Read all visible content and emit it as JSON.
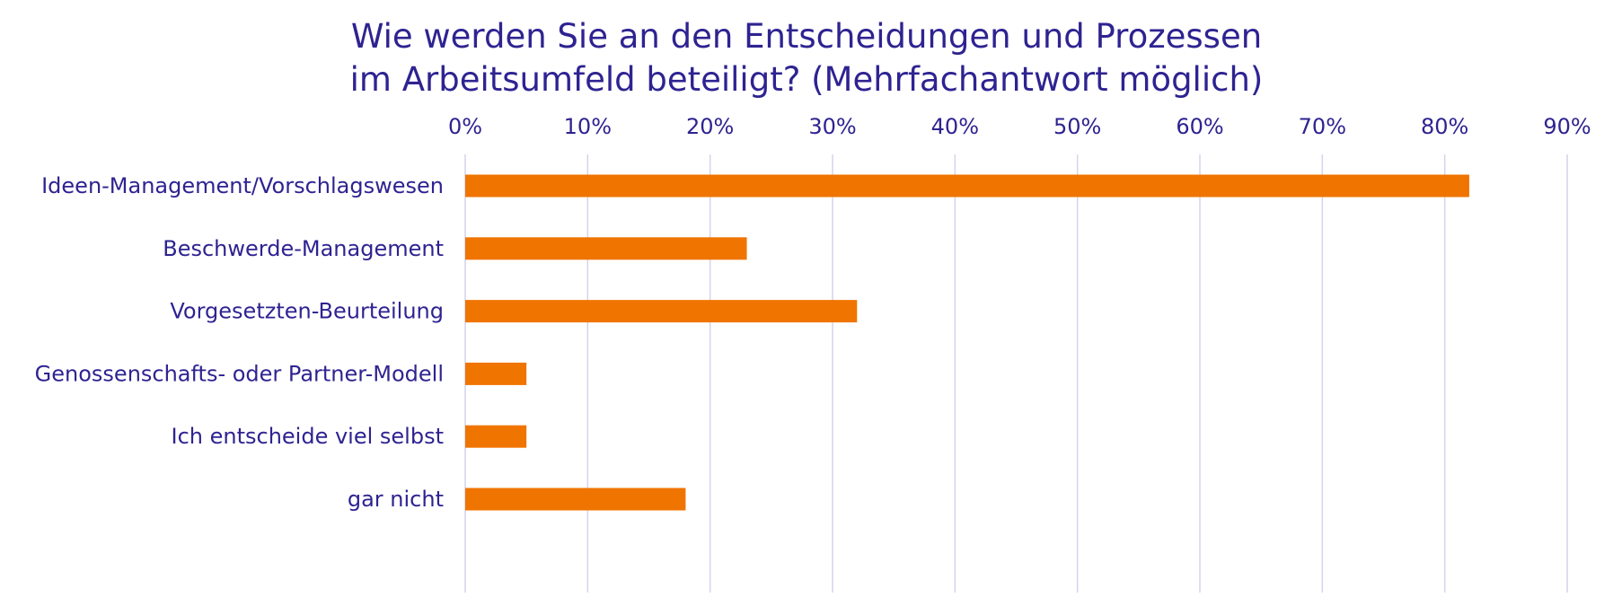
{
  "chart_data": {
    "type": "bar",
    "orientation": "horizontal",
    "title_lines": [
      "Wie werden Sie an den Entscheidungen und Prozessen",
      "im Arbeitsumfeld beteiligt? (Mehrfachantwort möglich)"
    ],
    "categories": [
      "Ideen-Management/Vorschlagswesen",
      "Beschwerde-Management",
      "Vorgesetzten-Beurteilung",
      "Genossenschafts- oder Partner-Modell",
      "Ich entscheide viel selbst",
      "gar nicht"
    ],
    "values": [
      82,
      23,
      32,
      5,
      5,
      18
    ],
    "xlim": [
      0,
      90
    ],
    "x_ticks": [
      0,
      10,
      20,
      30,
      40,
      50,
      60,
      70,
      80,
      90
    ],
    "x_tick_labels": [
      "0%",
      "10%",
      "20%",
      "30%",
      "40%",
      "50%",
      "60%",
      "70%",
      "80%",
      "90%"
    ],
    "x_axis_position": "top",
    "grid": true,
    "legend": "none",
    "colors": {
      "bar": "#F07400",
      "text": "#2E2391",
      "grid": "#D4D4EC"
    }
  }
}
